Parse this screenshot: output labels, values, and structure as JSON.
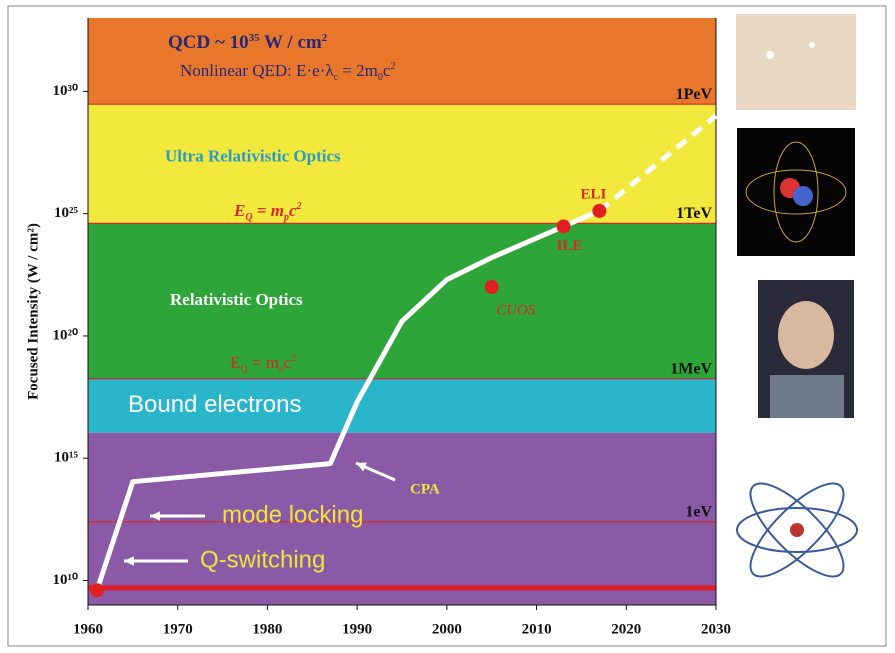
{
  "chart_data": {
    "type": "line",
    "y_label": "Focused Intensity (W / cm²)",
    "log_y": true,
    "xlim": [
      1960,
      2030
    ],
    "xticks": [
      1960,
      1970,
      1980,
      1990,
      2000,
      2010,
      2020,
      2030
    ],
    "ylim": [
      1000000000.0,
      1e+33
    ],
    "yticks": [
      {
        "value": 10000000000.0,
        "label": "10¹⁰"
      },
      {
        "value": 1000000000000000.0,
        "label": "10¹⁵"
      },
      {
        "value": 1e+20,
        "label": "10²⁰"
      },
      {
        "value": 1e+25,
        "label": "10²⁵"
      },
      {
        "value": 1e+30,
        "label": "10³⁰"
      }
    ],
    "bands": [
      {
        "from": 3e+29,
        "to": 1e+33,
        "color": "#e8772b"
      },
      {
        "label": "Ultra Relativistic Optics",
        "from": 4e+24,
        "to": 3e+29,
        "color": "#f2e93c"
      },
      {
        "label": "Relativistic Optics",
        "from": 1.8e+18,
        "to": 4e+24,
        "color": "#2ea538"
      },
      {
        "label": "Bound electrons",
        "from": 1.1e+16,
        "to": 1.8e+18,
        "color": "#29b6cb"
      },
      {
        "from": 1000000000.0,
        "to": 1.1e+16,
        "color": "#8a5aa7"
      }
    ],
    "energy_lines": {
      "labels": [
        "1PeV",
        "1TeV",
        "1MeV",
        "1eV"
      ],
      "values": [
        3e+29,
        4e+24,
        1.8e+18,
        2500000000000.0
      ],
      "color": "#d42a2a"
    },
    "base_line_value": 5000000000.0,
    "formulas": {
      "qcd": [
        "QCD ~ 10",
        "35",
        " W / cm",
        "2"
      ],
      "qed": [
        "Nonlinear QED: E·e·λ",
        "c",
        " = 2m",
        "0",
        "c",
        "2"
      ],
      "proton": [
        "E",
        "Q",
        " = m",
        "p",
        "c",
        "2"
      ],
      "electron": [
        "E",
        "Q",
        " = m",
        "e",
        "c",
        "2"
      ]
    },
    "annotations": [
      "CPA",
      "mode locking",
      "Q-switching"
    ],
    "line": {
      "color": "#ffffff",
      "x": [
        1961,
        1965,
        1987,
        1990,
        1995,
        2000,
        2005,
        2010,
        2013,
        2017
      ],
      "values": [
        4000000000.0,
        110000000000000.0,
        600000000000000.0,
        2e+17,
        4e+20,
        2e+22,
        1.6e+23,
        1e+24,
        3e+24,
        1.3e+25
      ]
    },
    "projection": {
      "x": [
        2017,
        2030
      ],
      "values": [
        1.3e+25,
        1e+29
      ]
    },
    "points": {
      "color": "#e02020",
      "x": [
        1961,
        2005,
        2013,
        2017
      ],
      "values": [
        4000000000.0,
        1e+22,
        3e+24,
        1.3e+25
      ],
      "labels": [
        null,
        "CUOS",
        "ILE",
        "ELI"
      ]
    }
  }
}
